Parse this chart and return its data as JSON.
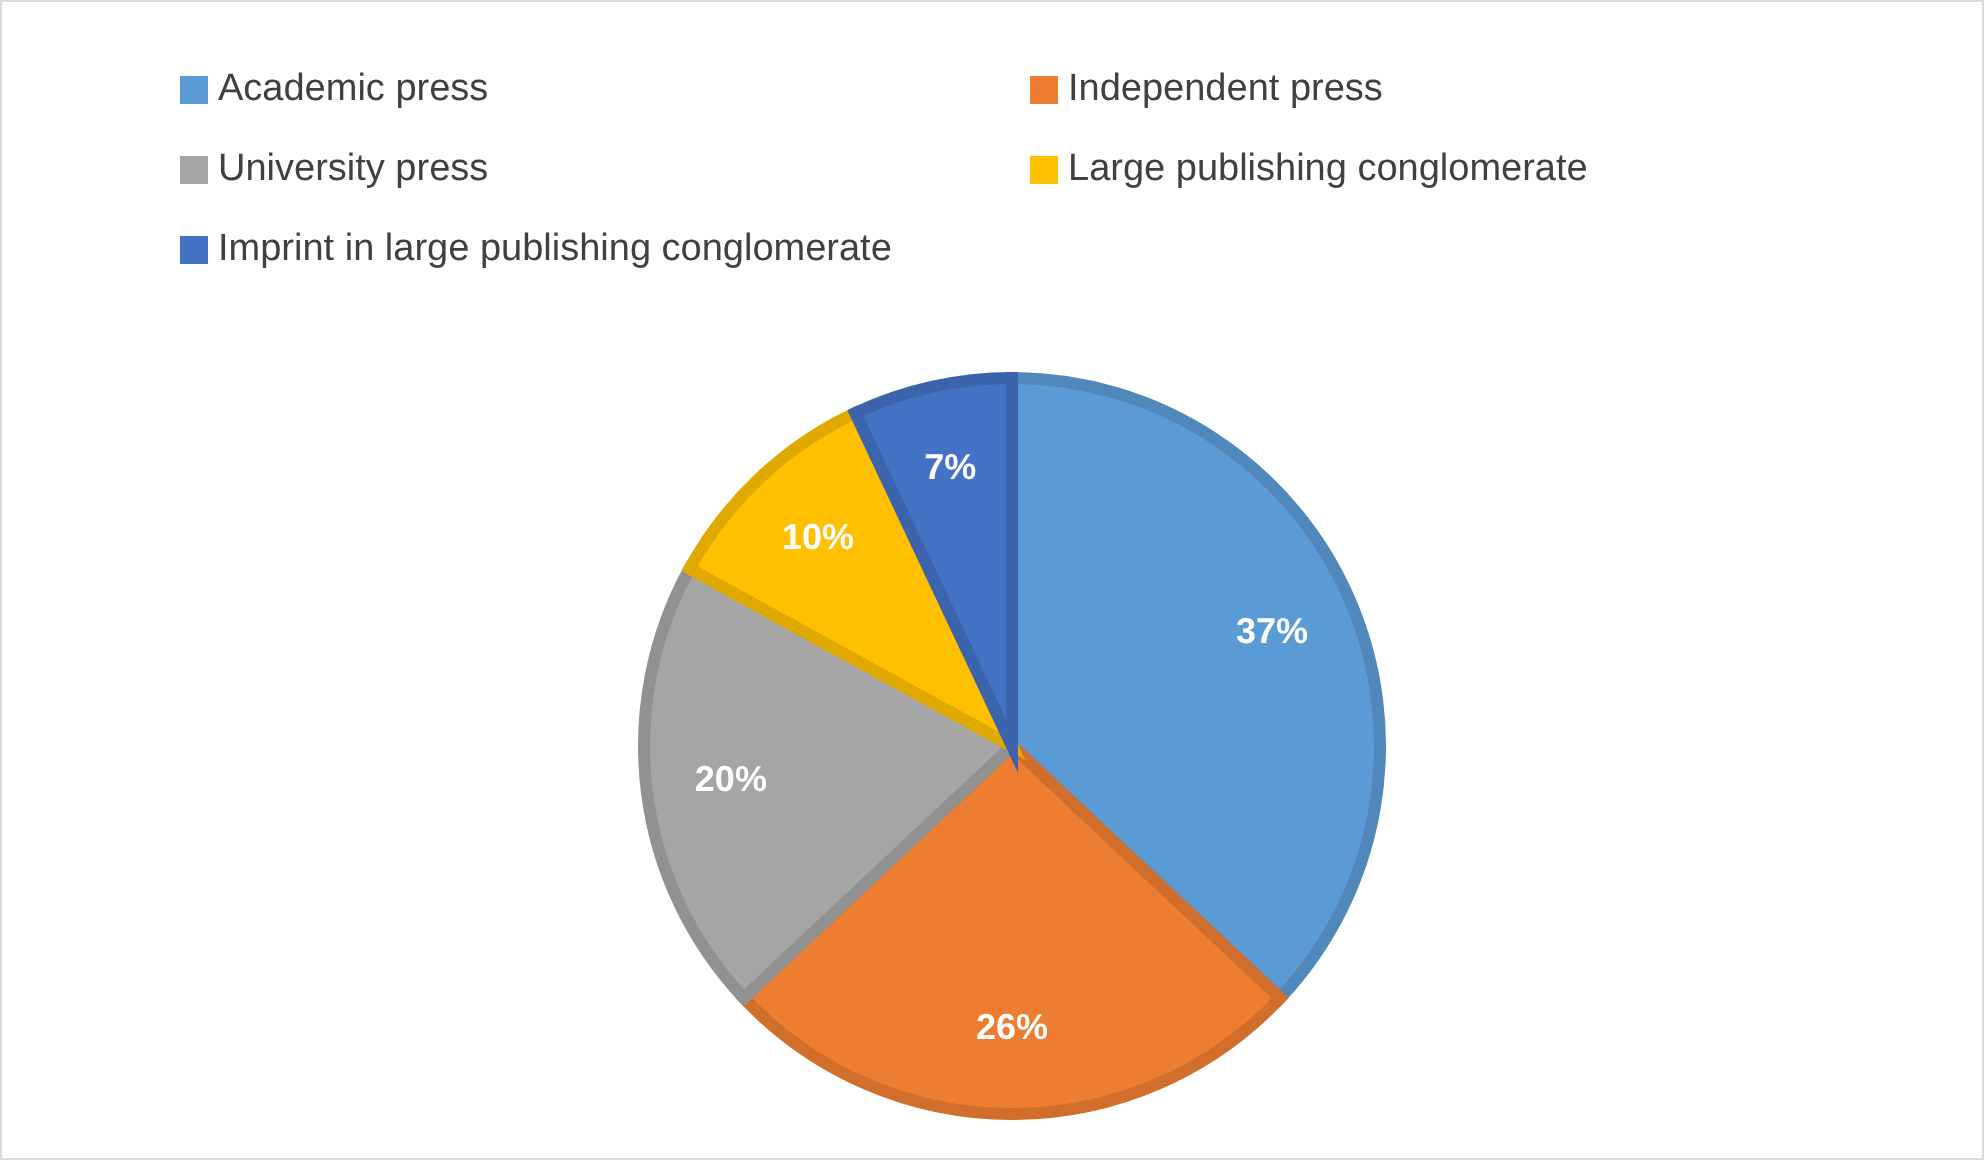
{
  "chart_data": {
    "type": "pie",
    "categories": [
      "Academic press",
      "Independent press",
      "University press",
      "Large publishing conglomerate",
      "Imprint in large publishing conglomerate"
    ],
    "values": [
      37,
      26,
      20,
      10,
      7
    ],
    "colors": [
      "#5b9bd5",
      "#ed7d31",
      "#a5a5a5",
      "#ffc000",
      "#4472c4"
    ],
    "value_labels": [
      "37%",
      "26%",
      "20%",
      "10%",
      "7%"
    ],
    "legend": "top"
  }
}
